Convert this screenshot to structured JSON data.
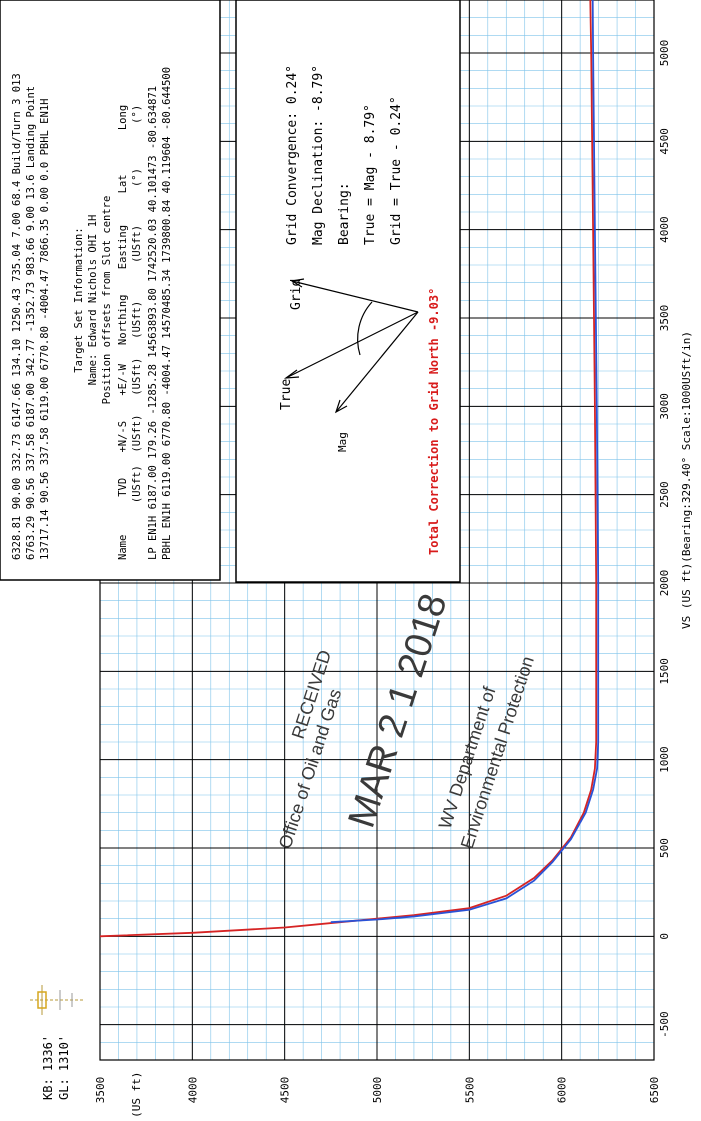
{
  "kb_label": "KB: 1336'",
  "gl_label": "GL: 1310'",
  "axis_x_label": "TVD (US ft)",
  "axis_y_label": "VS (US ft)(Bearing:329.40° Scale:1000USft/in)",
  "section_table": {
    "rows": [
      "6328.81 90.00 332.73 6147.66 134.10 1250.43 735.04 7.00 68.4 Build/Turn 3 013",
      "6763.29 90.56 337.58 6187.00 342.77 -1352.73 983.66 9.00 13.6 Landing Point",
      "13717.14 90.56 337.58 6119.00 6770.80 -4004.47 7866.35 0.00 0.0 PBHL EN1H"
    ]
  },
  "target_info": {
    "title": "Target Set Information:",
    "name_line": "Name: Edward Nichols OHI 1H",
    "offsets_line": "Position offsets from Slot centre",
    "header1": "Name      TVD    +N/-S    +E/-W   Northing    Easting     Lat       Long",
    "header2": "         (USft)  (USft)   (USft)   (USft)      (USft)      (°)       (°)",
    "row1": "LP EN1H 6187.00  179.26 -1285.28 14563893.80 1742520.03 40.101473 -80.634871",
    "row2": "PBHL EN1H 6119.00 6770.80 -4004.47 14570485.34 1739800.84 40.119604 -80.644500"
  },
  "north_box": {
    "true_label": "True",
    "grid_label": "Grid",
    "mag_label": "Mag",
    "grid_convergence": "Grid Convergence: 0.24°",
    "mag_declination": "Mag Declination: -8.79°",
    "bearing": "Bearing:",
    "true_eq": "True = Mag - 8.79°",
    "grid_eq": "Grid = True - 0.24°",
    "total_correction": "Total Correction to Grid North -9.03°",
    "total_color": "#d81b1b"
  },
  "stamp": {
    "line1": "RECEIVED",
    "line2": "Office of Oil and Gas",
    "line3": "MAR 2 1 2018",
    "line4": "WV Department of",
    "line5": "Environmental Protection"
  },
  "chart_data": {
    "type": "line",
    "orientation": "rotated 90° clockwise; TVD runs left-to-right along the bottom, VS runs bottom-to-top",
    "xlabel": "TVD (US ft)",
    "ylabel": "VS (US ft)(Bearing:329.40° Scale:1000USft/in)",
    "tvd_range": [
      3500,
      6500
    ],
    "vs_range": [
      -700,
      5300
    ],
    "tvd_ticks": [
      3500,
      4000,
      4500,
      5000,
      5500,
      6000,
      6500
    ],
    "vs_ticks": [
      -500,
      0,
      500,
      1000,
      1500,
      2000,
      2500,
      3000,
      3500,
      4000,
      4500,
      5000
    ],
    "grid": true,
    "series": [
      {
        "color": "#d62424",
        "points": [
          [
            3500,
            0
          ],
          [
            4000,
            20
          ],
          [
            4500,
            50
          ],
          [
            4800,
            80
          ],
          [
            5000,
            100
          ],
          [
            5200,
            120
          ],
          [
            5500,
            160
          ],
          [
            5700,
            230
          ],
          [
            5850,
            330
          ],
          [
            5950,
            430
          ],
          [
            6050,
            560
          ],
          [
            6120,
            700
          ],
          [
            6160,
            830
          ],
          [
            6180,
            950
          ],
          [
            6187,
            1100
          ],
          [
            6187,
            2000
          ],
          [
            6180,
            3000
          ],
          [
            6170,
            4000
          ],
          [
            6160,
            5000
          ],
          [
            6155,
            5300
          ]
        ]
      },
      {
        "color": "#2a52d6",
        "points": [
          [
            4750,
            80
          ],
          [
            5000,
            95
          ],
          [
            5200,
            112
          ],
          [
            5500,
            150
          ],
          [
            5700,
            215
          ],
          [
            5850,
            315
          ],
          [
            5950,
            420
          ],
          [
            6050,
            550
          ],
          [
            6130,
            700
          ],
          [
            6170,
            830
          ],
          [
            6192,
            950
          ],
          [
            6198,
            1100
          ],
          [
            6198,
            2000
          ],
          [
            6190,
            3000
          ],
          [
            6180,
            4000
          ],
          [
            6170,
            5000
          ],
          [
            6168,
            5300
          ]
        ]
      }
    ]
  },
  "colors": {
    "grid_major": "#000000",
    "grid_minor": "#7fc3ea",
    "stamp_ink": "#3a3a3a",
    "wellbore_red": "#d62424",
    "wellbore_blue": "#2a52d6"
  }
}
